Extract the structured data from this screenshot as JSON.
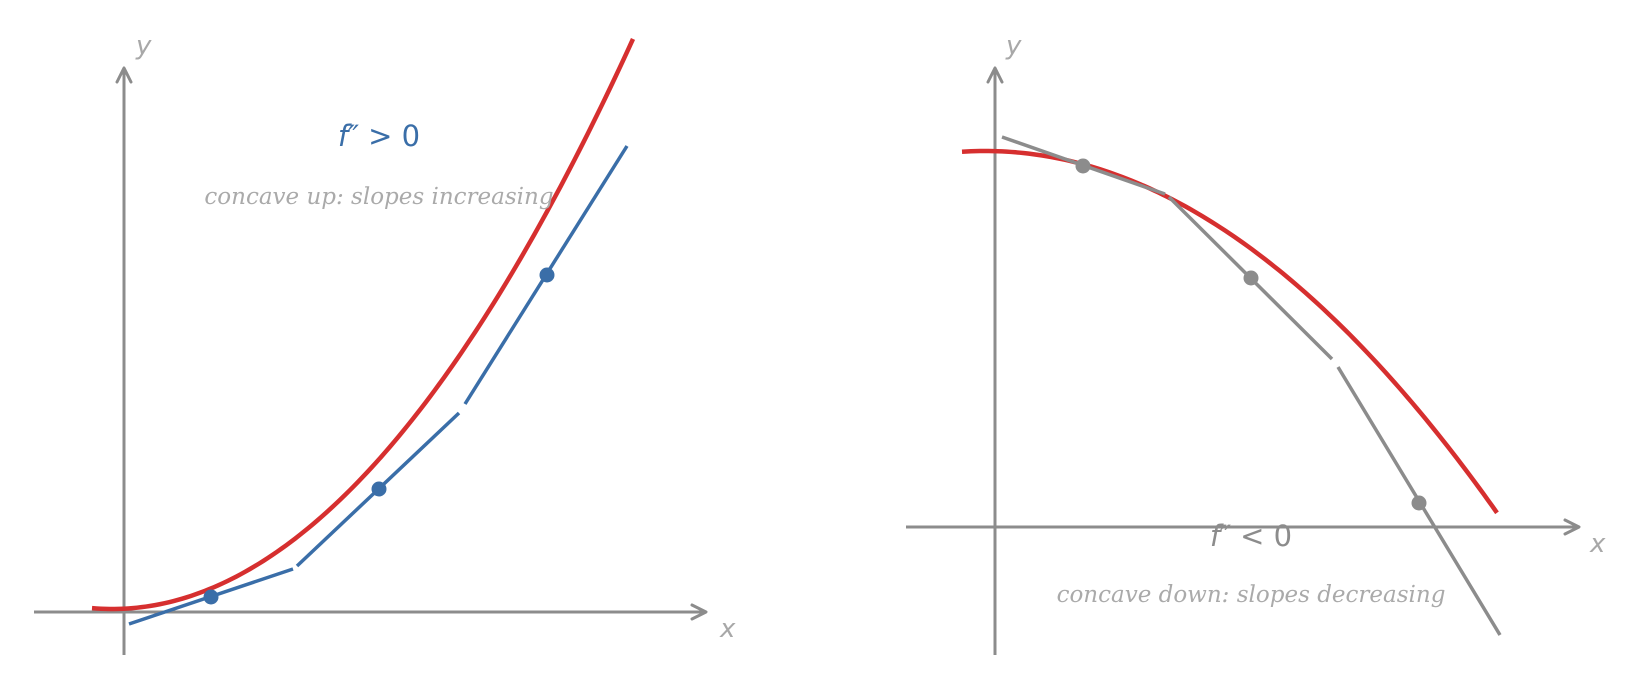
{
  "colors": {
    "axis": "#8c8c8c",
    "axis_label": "#a8a8a8",
    "curve": "#d62f2f",
    "concave_up_accent": "#3a6ea8",
    "concave_down_accent": "#8c8c8c",
    "caption": "#aaaaaa"
  },
  "panels": [
    {
      "formula_fn": "f″",
      "formula_rel": " > 0",
      "caption": "concave up: slopes increasing",
      "x_axis_label": "x",
      "y_axis_label": "y"
    },
    {
      "formula_fn": "f″",
      "formula_rel": " < 0",
      "caption": "concave down: slopes decreasing",
      "x_axis_label": "x",
      "y_axis_label": "y"
    }
  ]
}
